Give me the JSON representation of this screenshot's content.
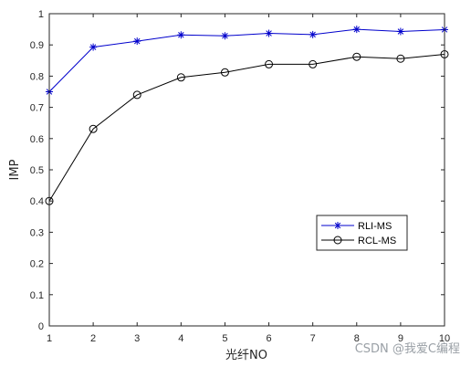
{
  "chart_data": {
    "type": "line",
    "xlabel": "光纤NO",
    "ylabel": "IMP",
    "x": [
      1,
      2,
      3,
      4,
      5,
      6,
      7,
      8,
      9,
      10
    ],
    "xlim": [
      1,
      10
    ],
    "ylim": [
      0,
      1
    ],
    "xticks": [
      "1",
      "2",
      "3",
      "4",
      "5",
      "6",
      "7",
      "8",
      "9",
      "10"
    ],
    "yticks": [
      "0",
      "0.1",
      "0.2",
      "0.3",
      "0.4",
      "0.5",
      "0.6",
      "0.7",
      "0.8",
      "0.9",
      "1"
    ],
    "grid": false,
    "legend_position": "lower-right",
    "series": [
      {
        "name": "RLI-MS",
        "color": "#0000cc",
        "marker": "asterisk",
        "values": [
          0.75,
          0.893,
          0.912,
          0.932,
          0.929,
          0.937,
          0.933,
          0.95,
          0.943,
          0.949
        ]
      },
      {
        "name": "RCL-MS",
        "color": "#000000",
        "marker": "circle",
        "values": [
          0.4,
          0.631,
          0.74,
          0.796,
          0.812,
          0.838,
          0.838,
          0.862,
          0.856,
          0.87
        ]
      }
    ]
  },
  "watermark": "CSDN @我爱C编程"
}
